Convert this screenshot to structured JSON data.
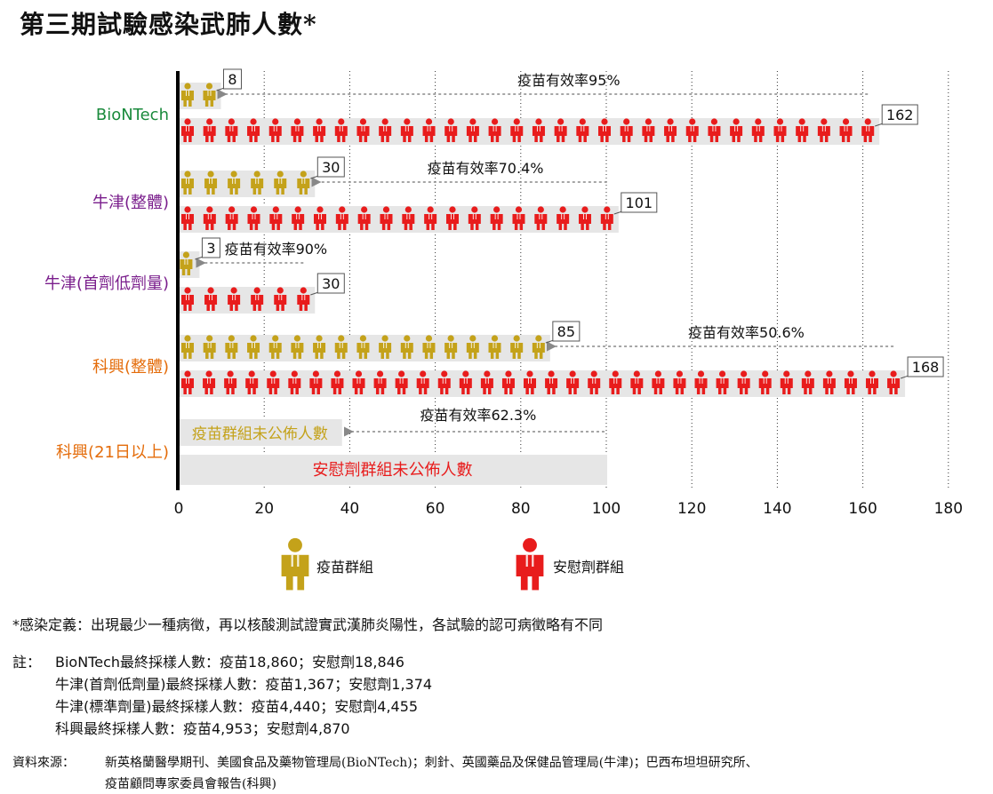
{
  "page_title": "第三期試驗感染武肺人數*",
  "chart_data": {
    "type": "bar",
    "categories": [
      "BioNTech",
      "牛津(整體)",
      "牛津(首劑低劑量)",
      "科興(整體)",
      "科興(21日以上)"
    ],
    "category_colors": [
      "#1a8a3c",
      "#7a1e8c",
      "#7a1e8c",
      "#e46c0a",
      "#e46c0a"
    ],
    "series": [
      {
        "name": "疫苗群組",
        "color": "#c4a21a",
        "values": [
          8,
          30,
          3,
          85,
          null
        ]
      },
      {
        "name": "安慰劑群組",
        "color": "#e81c1c",
        "values": [
          162,
          101,
          30,
          168,
          null
        ]
      }
    ],
    "value_labels": {
      "vaccine": [
        "8",
        "30",
        "3",
        "85",
        ""
      ],
      "placebo": [
        "162",
        "101",
        "30",
        "168",
        ""
      ]
    },
    "efficacy_labels": [
      "疫苗有效率95%",
      "疫苗有效率70.4%",
      "疫苗有效率90%",
      "疫苗有效率50.6%",
      "疫苗有效率62.3%"
    ],
    "unreported": {
      "vaccine_text": "疫苗群組未公佈人數",
      "placebo_text": "安慰劑群組未公佈人數",
      "vaccine_band_to": 38,
      "placebo_band_to": 100
    },
    "x_ticks": [
      "0",
      "20",
      "40",
      "60",
      "80",
      "100",
      "120",
      "140",
      "160",
      "180"
    ],
    "x_tick_values": [
      0,
      20,
      40,
      60,
      80,
      100,
      120,
      140,
      160,
      180
    ],
    "xlim": [
      0,
      180
    ],
    "grid": "vertical dotted",
    "legend_position": "bottom-center",
    "colors": {
      "background_band": "#e6e6e6",
      "arrow": "#888888"
    }
  },
  "footnote": "*感染定義：出現最少一種病徵，再以核酸測試證實武漢肺炎陽性，各試驗的認可病徵略有不同",
  "notes": {
    "label": "註：",
    "lines": [
      "BioNTech最終採樣人數：疫苗18,860；安慰劑18,846",
      "牛津(首劑低劑量)最終採樣人數：疫苗1,367；安慰劑1,374",
      "牛津(標準劑量)最終採樣人數：疫苗4,440；安慰劑4,455",
      "科興最終採樣人數：疫苗4,953；安慰劑4,870"
    ]
  },
  "source": {
    "label": "資料來源：",
    "lines": [
      "新英格蘭醫學期刊、美國食品及藥物管理局(BioNTech)；刺針、英國藥品及保健品管理局(牛津)；巴西布坦坦研究所、",
      "疫苗顧問專家委員會報告(科興)"
    ]
  }
}
